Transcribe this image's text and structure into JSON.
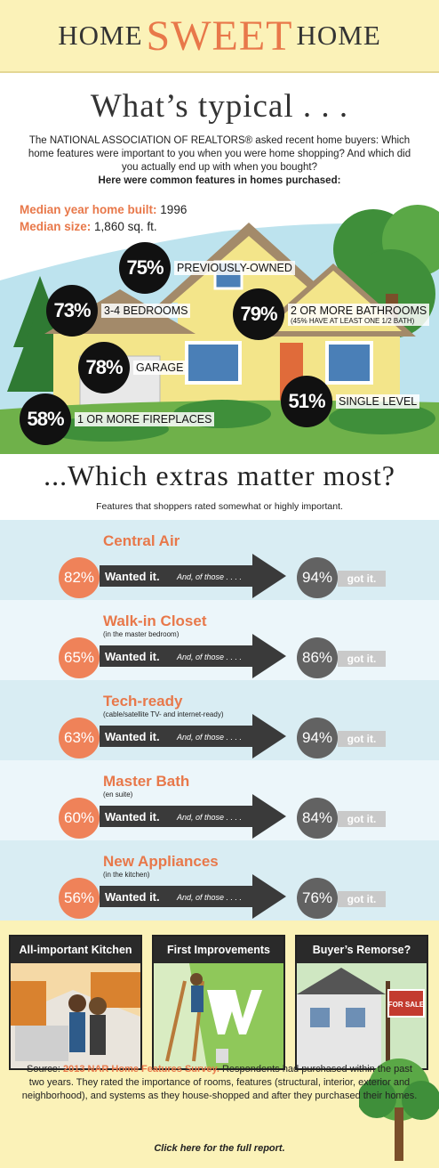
{
  "header": {
    "home_left": "HOME",
    "sweet": "SWEET",
    "home_right": "HOME"
  },
  "intro": {
    "title": "What’s typical . . .",
    "text": "The NATIONAL ASSOCIATION OF REALTORS® asked recent home buyers: Which home features were important to you when you were home shopping? And which did you actually end up with when you bought?",
    "bold_text": "Here were common features in homes purchased:"
  },
  "medians": [
    {
      "label": "Median year home built:",
      "value": "1996"
    },
    {
      "label": "Median size:",
      "value": "1,860 sq. ft."
    }
  ],
  "stats": [
    {
      "pct": "75%",
      "label": "PREVIOUSLY-OWNED"
    },
    {
      "pct": "73%",
      "label": "3-4 BEDROOMS"
    },
    {
      "pct": "79%",
      "label": "2 OR MORE BATHROOMS",
      "sub": "(45% HAVE AT LEAST ONE 1/2 BATH)"
    },
    {
      "pct": "78%",
      "label": "GARAGE"
    },
    {
      "pct": "51%",
      "label": "SINGLE LEVEL"
    },
    {
      "pct": "58%",
      "label": "1 OR MORE FIREPLACES"
    }
  ],
  "extras": {
    "title": "...Which extras matter most?",
    "subtitle": "Features that shoppers rated somewhat or highly important.",
    "wanted_label": "Wanted it.",
    "those_label": "And, of those . . . .",
    "got_label": "got it.",
    "features": [
      {
        "name": "Central Air",
        "sub": "",
        "wanted": "82%",
        "got": "94%"
      },
      {
        "name": "Walk-in Closet",
        "sub": "(in the master bedroom)",
        "wanted": "65%",
        "got": "86%"
      },
      {
        "name": "Tech-ready",
        "sub": "(cable/satellite TV- and internet-ready)",
        "wanted": "63%",
        "got": "94%"
      },
      {
        "name": "Master Bath",
        "sub": "(en suite)",
        "wanted": "60%",
        "got": "84%"
      },
      {
        "name": "New Appliances",
        "sub": "(in the kitchen)",
        "wanted": "56%",
        "got": "76%"
      }
    ]
  },
  "cards": [
    {
      "title": "All-important Kitchen"
    },
    {
      "title": "First Improvements"
    },
    {
      "title": "Buyer’s Remorse?",
      "sign": "FOR SALE"
    }
  ],
  "footer": {
    "source_prefix": "Source:",
    "source_name": "2013 NAR Home Features Survey.",
    "source_text": "Respondents had purchased within the past two years. They rated the importance of rooms, features (structural, interior, exterior and neighborhood), and systems as they house-shopped and after they purchased their homes.",
    "cta": "Click here for the full report."
  },
  "colors": {
    "accent": "#e8784a",
    "header_bg": "#fbf2b8",
    "band_dark": "#d9edf3",
    "band_light": "#ecf6fa",
    "arrow": "#3a3a3a",
    "got_circle": "#626262"
  }
}
